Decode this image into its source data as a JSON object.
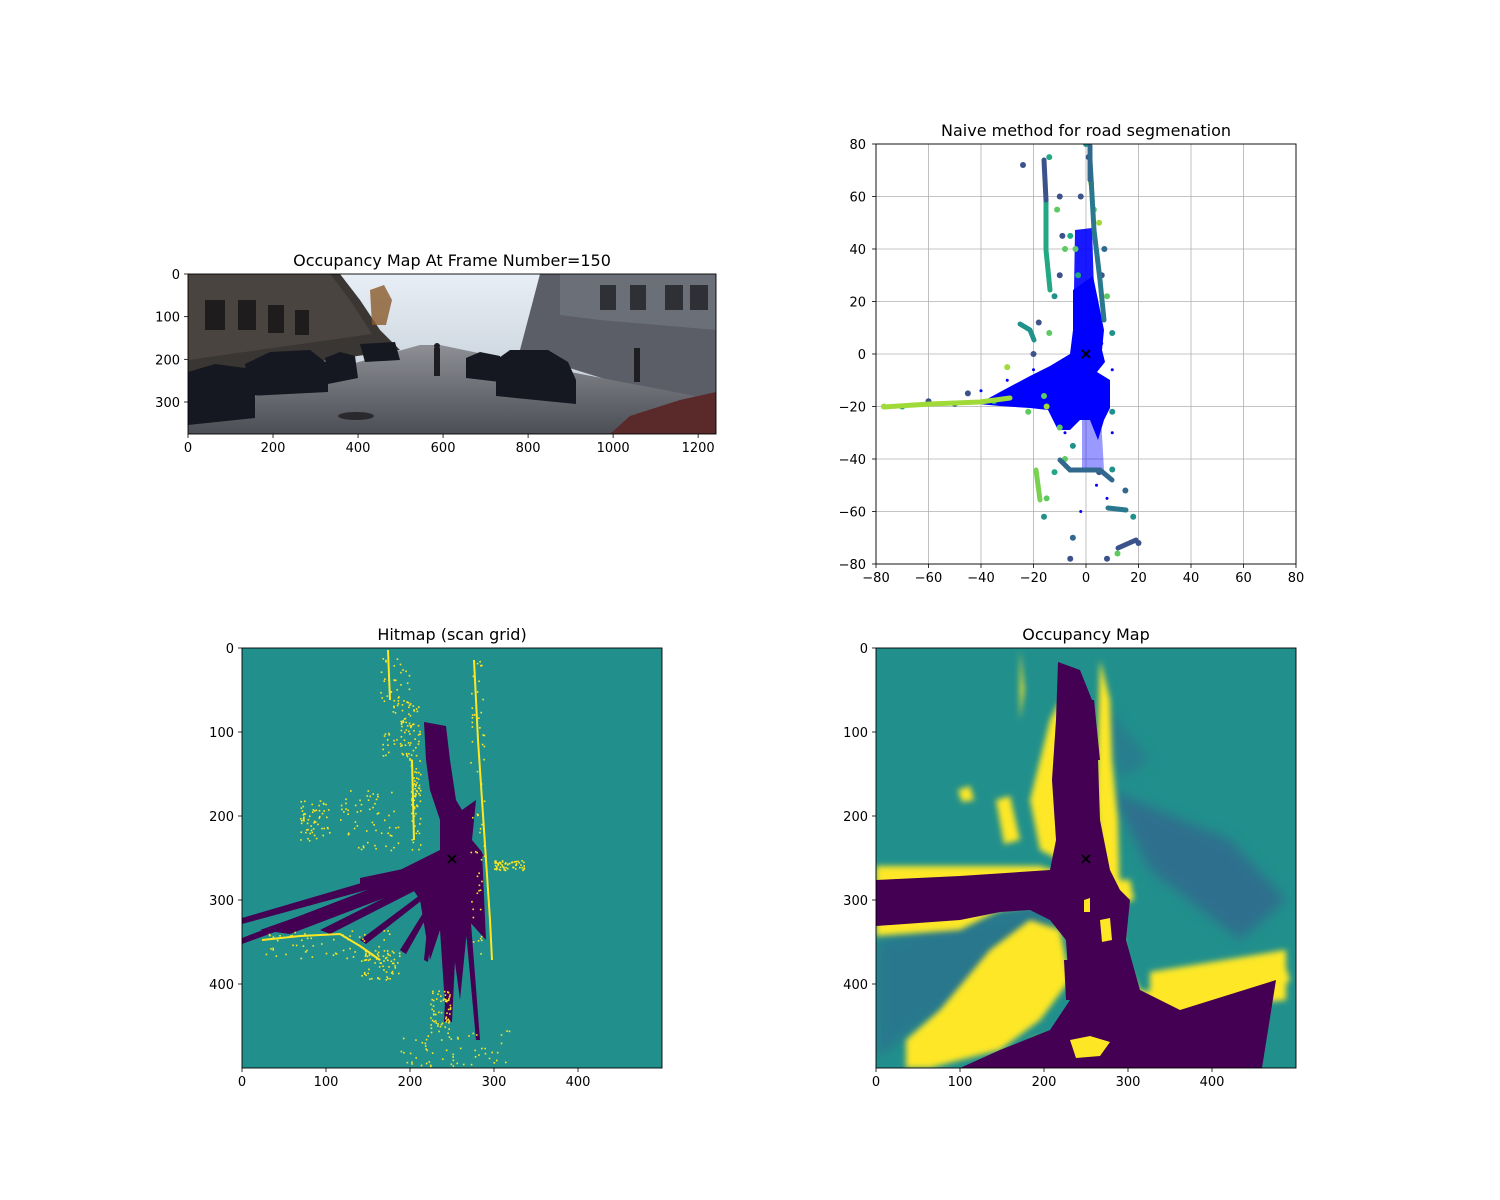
{
  "colors": {
    "viridis_dark": "#440154",
    "viridis_mid": "#21908c",
    "viridis_bright": "#fde725",
    "road_points": "#0000ff",
    "ego_marker": "#ff0000",
    "grid": "#b0b0b0"
  },
  "chart_data": [
    {
      "type": "image",
      "title": "Occupancy Map At Frame Number=150",
      "x_ticks": [
        0,
        200,
        400,
        600,
        800,
        1000,
        1200
      ],
      "y_ticks": [
        0,
        100,
        200,
        300
      ],
      "xlim": [
        0,
        1242
      ],
      "ylim": [
        375,
        0
      ],
      "content": "camera frame of a city street with parked cars and a cyclist"
    },
    {
      "type": "scatter",
      "title": "Naive method for road segmenation",
      "xlim": [
        -80,
        80
      ],
      "ylim": [
        -80,
        80
      ],
      "x_ticks": [
        -80,
        -60,
        -40,
        -20,
        0,
        20,
        40,
        60,
        80
      ],
      "y_ticks": [
        80,
        60,
        40,
        20,
        0,
        -20,
        -40,
        -60,
        -80
      ],
      "x_tick_labels": [
        "−80",
        "−60",
        "−40",
        "−20",
        "0",
        "20",
        "40",
        "60",
        "80"
      ],
      "y_tick_labels": [
        "80",
        "60",
        "40",
        "20",
        "0",
        "−20",
        "−40",
        "−60",
        "−80"
      ],
      "grid": true,
      "series": [
        {
          "role": "road points",
          "color": "#0000ff",
          "points": [
            [
              0,
              10
            ],
            [
              2,
              25
            ],
            [
              -2,
              30
            ],
            [
              4,
              8
            ],
            [
              6,
              4
            ],
            [
              -4,
              -2
            ],
            [
              -10,
              -4
            ],
            [
              -20,
              -6
            ],
            [
              -30,
              -10
            ],
            [
              -40,
              -14
            ],
            [
              -10,
              -10
            ],
            [
              5,
              -10
            ],
            [
              8,
              -18
            ],
            [
              3,
              -20
            ],
            [
              -5,
              -16
            ],
            [
              -15,
              -12
            ],
            [
              -25,
              -16
            ],
            [
              10,
              -6
            ],
            [
              0,
              -18
            ],
            [
              -8,
              -30
            ],
            [
              10,
              -30
            ],
            [
              4,
              -50
            ],
            [
              -2,
              -60
            ],
            [
              8,
              -55
            ]
          ]
        },
        {
          "role": "obstacle points",
          "color_map": "viridis",
          "points": [
            [
              -10,
              60
            ],
            [
              -11,
              55
            ],
            [
              -9,
              45
            ],
            [
              -8,
              40
            ],
            [
              -10,
              30
            ],
            [
              -12,
              22
            ],
            [
              -18,
              12
            ],
            [
              -14,
              8
            ],
            [
              -6,
              45
            ],
            [
              -4,
              40
            ],
            [
              -3,
              30
            ],
            [
              -2,
              60
            ],
            [
              1,
              75
            ],
            [
              2,
              65
            ],
            [
              3,
              55
            ],
            [
              5,
              50
            ],
            [
              7,
              40
            ],
            [
              6,
              30
            ],
            [
              8,
              22
            ],
            [
              10,
              8
            ],
            [
              -20,
              0
            ],
            [
              -30,
              -5
            ],
            [
              -45,
              -15
            ],
            [
              -60,
              -18
            ],
            [
              -70,
              -20
            ],
            [
              -77,
              -20
            ],
            [
              -50,
              -19
            ],
            [
              -35,
              -18
            ],
            [
              -22,
              -22
            ],
            [
              -15,
              -20
            ],
            [
              -5,
              -35
            ],
            [
              -8,
              -40
            ],
            [
              -12,
              -45
            ],
            [
              -15,
              -55
            ],
            [
              -16,
              -62
            ],
            [
              -5,
              -70
            ],
            [
              5,
              -45
            ],
            [
              10,
              -44
            ],
            [
              15,
              -52
            ],
            [
              18,
              -62
            ],
            [
              20,
              -72
            ],
            [
              12,
              -76
            ],
            [
              8,
              -78
            ],
            [
              -6,
              -78
            ],
            [
              10,
              -22
            ],
            [
              -14,
              75
            ],
            [
              -24,
              72
            ],
            [
              0,
              80
            ],
            [
              -10,
              -28
            ],
            [
              -16,
              -16
            ]
          ]
        }
      ],
      "marker": {
        "x": 0,
        "y": 0,
        "symbol": "x",
        "color": "#ff0000"
      }
    },
    {
      "type": "heatmap",
      "title": "Hitmap (scan grid)",
      "x_ticks": [
        0,
        100,
        200,
        300,
        400
      ],
      "y_ticks": [
        0,
        100,
        200,
        300,
        400
      ],
      "xlim": [
        0,
        500
      ],
      "ylim": [
        500,
        0
      ],
      "color_map": "viridis",
      "marker": {
        "x": 250,
        "y": 250,
        "symbol": "x",
        "color": "#ff0000"
      }
    },
    {
      "type": "heatmap",
      "title": "Occupancy Map",
      "x_ticks": [
        0,
        100,
        200,
        300,
        400
      ],
      "y_ticks": [
        0,
        100,
        200,
        300,
        400
      ],
      "xlim": [
        0,
        500
      ],
      "ylim": [
        500,
        0
      ],
      "color_map": "viridis",
      "marker": {
        "x": 250,
        "y": 250,
        "symbol": "x",
        "color": "#ff0000"
      }
    }
  ]
}
